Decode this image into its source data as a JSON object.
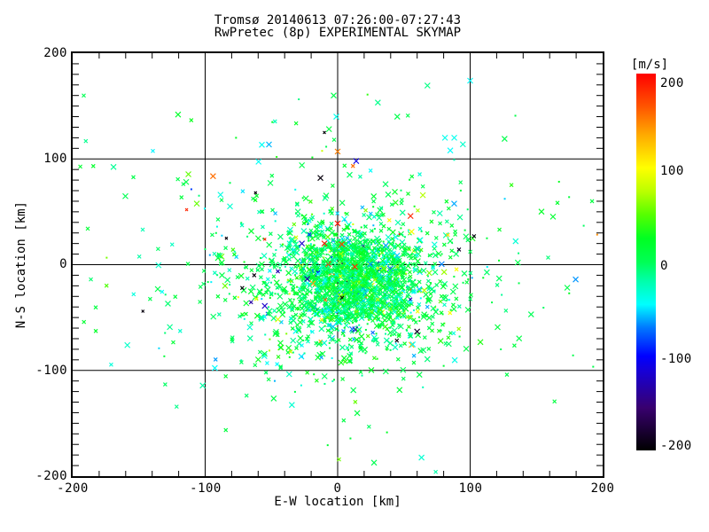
{
  "chart_data": {
    "type": "scatter",
    "title_line1": "Tromsø 20140613 07:26:00-07:27:43",
    "title_line2": "RwPretec (8p) EXPERIMENTAL SKYMAP",
    "xlabel": "E-W location [km]",
    "ylabel": "N-S location [km]",
    "xlim": [
      -200,
      200
    ],
    "ylim": [
      -200,
      200
    ],
    "x_ticks": [
      "-200",
      "-100",
      "0",
      "100",
      "200"
    ],
    "y_ticks": [
      "200",
      "100",
      "0",
      "-100",
      "-200"
    ],
    "grid_values_km": [
      -100,
      0,
      100
    ],
    "x_minor_step_km": 20,
    "y_minor_step_km": 10,
    "marker": "x",
    "grid": true,
    "colorbar": {
      "label": "[m/s]",
      "ticks": [
        "200",
        "100",
        "0",
        "-100",
        "-200"
      ],
      "tick_values": [
        200,
        100,
        0,
        -100,
        -200
      ],
      "range": [
        -200,
        200
      ],
      "stops": [
        {
          "v": 200,
          "c": "#ff0000"
        },
        {
          "v": 165,
          "c": "#ff5500"
        },
        {
          "v": 135,
          "c": "#ffaa00"
        },
        {
          "v": 100,
          "c": "#ffff00"
        },
        {
          "v": 75,
          "c": "#bbff00"
        },
        {
          "v": 50,
          "c": "#55ff00"
        },
        {
          "v": 25,
          "c": "#00ff22"
        },
        {
          "v": 0,
          "c": "#00ff55"
        },
        {
          "v": -20,
          "c": "#00ffaa"
        },
        {
          "v": -45,
          "c": "#00ffff"
        },
        {
          "v": -70,
          "c": "#0077ff"
        },
        {
          "v": -100,
          "c": "#0000ff"
        },
        {
          "v": -115,
          "c": "#1600d8"
        },
        {
          "v": -155,
          "c": "#38006e"
        },
        {
          "v": -200,
          "c": "#000000"
        }
      ]
    },
    "point_cloud": {
      "seed": 20140613,
      "clusters": [
        {
          "n": 1500,
          "cx": 12,
          "cy": -15,
          "sx": 26,
          "sy": 24
        },
        {
          "n": 650,
          "cx": 10,
          "cy": -22,
          "sx": 48,
          "sy": 40
        },
        {
          "n": 280,
          "cx": 0,
          "cy": -5,
          "sx": 75,
          "sy": 62
        },
        {
          "n": 90,
          "cx": 0,
          "cy": 5,
          "sx": 110,
          "sy": 90
        }
      ],
      "velocity_mix": [
        {
          "p": 0.78,
          "mean": 5,
          "sd": 15
        },
        {
          "p": 0.14,
          "mean": -40,
          "sd": 15
        },
        {
          "p": 0.05,
          "mean": 55,
          "sd": 25
        },
        {
          "p": 0.03,
          "extreme": true
        }
      ],
      "sizes": [
        {
          "p": 0.25,
          "r": 1.1
        },
        {
          "p": 0.45,
          "r": 2
        },
        {
          "p": 0.3,
          "r": 3
        }
      ]
    },
    "outliers": [
      [
        -114,
        52,
        185,
        1.5
      ],
      [
        -62,
        68,
        -195,
        1.5
      ],
      [
        -84,
        25,
        -195,
        1.5
      ],
      [
        -55,
        24,
        185,
        1.5
      ],
      [
        -55,
        -39,
        -120,
        3
      ],
      [
        -85,
        -20,
        55,
        3
      ],
      [
        -63,
        -10,
        -195,
        2
      ],
      [
        -72,
        -22,
        -195,
        2
      ],
      [
        -147,
        -44,
        -195,
        1.5
      ],
      [
        -154,
        -28,
        -35,
        2
      ],
      [
        0,
        107,
        150,
        3
      ],
      [
        14,
        98,
        -110,
        3
      ],
      [
        -10,
        125,
        -195,
        1.5
      ],
      [
        -13,
        82,
        -195,
        3
      ],
      [
        -1,
        140,
        -40,
        3
      ],
      [
        100,
        174,
        -45,
        3
      ],
      [
        126,
        119,
        5,
        3
      ],
      [
        81,
        120,
        -40,
        3
      ],
      [
        88,
        120,
        -40,
        3
      ],
      [
        85,
        108,
        -45,
        3
      ],
      [
        192,
        60,
        10,
        2
      ],
      [
        -3,
        160,
        5,
        3
      ],
      [
        136,
        2,
        5,
        3
      ],
      [
        146,
        -47,
        0,
        3
      ],
      [
        -10,
        20,
        190,
        3
      ],
      [
        13,
        -2,
        185,
        3
      ],
      [
        0,
        39,
        190,
        3
      ],
      [
        55,
        46,
        185,
        3
      ],
      [
        -27,
        20,
        -120,
        3
      ],
      [
        74,
        -196,
        -20,
        2
      ],
      [
        53,
        141,
        5,
        2
      ],
      [
        -27,
        94,
        5,
        3
      ],
      [
        45,
        140,
        5,
        3
      ]
    ]
  }
}
